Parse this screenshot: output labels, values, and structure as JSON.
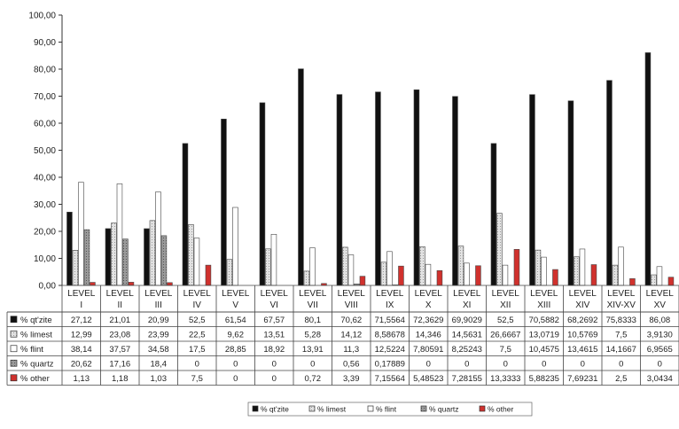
{
  "chart_data": {
    "type": "bar",
    "title": "",
    "xlabel": "",
    "ylabel": "",
    "ylim": [
      0,
      100
    ],
    "yticks": [
      "0,00",
      "10,00",
      "20,00",
      "30,00",
      "40,00",
      "50,00",
      "60,00",
      "70,00",
      "80,00",
      "90,00",
      "100,00"
    ],
    "grid": false,
    "legend_position": "bottom",
    "categories": [
      "LEVEL I",
      "LEVEL II",
      "LEVEL III",
      "LEVEL IV",
      "LEVEL V",
      "LEVEL VI",
      "LEVEL VII",
      "LEVEL VIII",
      "LEVEL IX",
      "LEVEL X",
      "LEVEL XI",
      "LEVEL XII",
      "LEVEL XIII",
      "LEVEL XIV",
      "LEVEL XIV-XV",
      "LEVEL XV"
    ],
    "category_lines": [
      [
        "LEVEL",
        "I"
      ],
      [
        "LEVEL",
        "II"
      ],
      [
        "LEVEL",
        "III"
      ],
      [
        "LEVEL",
        "IV"
      ],
      [
        "LEVEL",
        "V"
      ],
      [
        "LEVEL",
        "VI"
      ],
      [
        "LEVEL",
        "VII"
      ],
      [
        "LEVEL",
        "VIII"
      ],
      [
        "LEVEL",
        "IX"
      ],
      [
        "LEVEL",
        "X"
      ],
      [
        "LEVEL",
        "XI"
      ],
      [
        "LEVEL",
        "XII"
      ],
      [
        "LEVEL",
        "XIII"
      ],
      [
        "LEVEL",
        "XIV"
      ],
      [
        "LEVEL",
        "XIV-XV"
      ],
      [
        "LEVEL",
        "XV"
      ]
    ],
    "series": [
      {
        "name": "% qt'zite",
        "color": "#111111",
        "pattern": "solid",
        "values": [
          27.12,
          21.01,
          20.99,
          52.5,
          61.54,
          67.57,
          80.1,
          70.62,
          71.5564,
          72.3629,
          69.9029,
          52.5,
          70.5882,
          68.2692,
          75.8333,
          86.08
        ],
        "labels": [
          "27,12",
          "21,01",
          "20,99",
          "52,5",
          "61,54",
          "67,57",
          "80,1",
          "70,62",
          "71,5564",
          "72,3629",
          "69,9029",
          "52,5",
          "70,5882",
          "68,2692",
          "75,8333",
          "86,08"
        ]
      },
      {
        "name": "% limest",
        "color": "#d8d8d8",
        "pattern": "light",
        "values": [
          12.99,
          23.08,
          23.99,
          22.5,
          9.62,
          13.51,
          5.28,
          14.12,
          8.58678,
          14.346,
          14.5631,
          26.6667,
          13.0719,
          10.5769,
          7.5,
          3.913
        ],
        "labels": [
          "12,99",
          "23,08",
          "23,99",
          "22,5",
          "9,62",
          "13,51",
          "5,28",
          "14,12",
          "8,58678",
          "14,346",
          "14,5631",
          "26,6667",
          "13,0719",
          "10,5769",
          "7,5",
          "3,9130"
        ]
      },
      {
        "name": "% flint",
        "color": "#ffffff",
        "pattern": "white",
        "values": [
          38.14,
          37.57,
          34.58,
          17.5,
          28.85,
          18.92,
          13.91,
          11.3,
          12.5224,
          7.80591,
          8.25243,
          7.5,
          10.4575,
          13.4615,
          14.1667,
          6.9565
        ],
        "labels": [
          "38,14",
          "37,57",
          "34,58",
          "17,5",
          "28,85",
          "18,92",
          "13,91",
          "11,3",
          "12,5224",
          "7,80591",
          "8,25243",
          "7,5",
          "10,4575",
          "13,4615",
          "14,1667",
          "6,9565"
        ]
      },
      {
        "name": "% quartz",
        "color": "#8c8c8c",
        "pattern": "grey",
        "values": [
          20.62,
          17.16,
          18.4,
          0,
          0,
          0,
          0,
          0.56,
          0.17889,
          0,
          0,
          0,
          0,
          0,
          0,
          0
        ],
        "labels": [
          "20,62",
          "17,16",
          "18,4",
          "0",
          "0",
          "0",
          "0",
          "0,56",
          "0,17889",
          "0",
          "0",
          "0",
          "0",
          "0",
          "0",
          "0"
        ]
      },
      {
        "name": "% other",
        "color": "#d32f2f",
        "pattern": "red",
        "values": [
          1.13,
          1.18,
          1.03,
          7.5,
          0,
          0,
          0.72,
          3.39,
          7.15564,
          5.48523,
          7.28155,
          13.3333,
          5.88235,
          7.69231,
          2.5,
          3.0434
        ],
        "labels": [
          "1,13",
          "1,18",
          "1,03",
          "7,5",
          "0",
          "0",
          "0,72",
          "3,39",
          "7,15564",
          "5,48523",
          "7,28155",
          "13,3333",
          "5,88235",
          "7,69231",
          "2,5",
          "3,0434"
        ]
      }
    ]
  }
}
